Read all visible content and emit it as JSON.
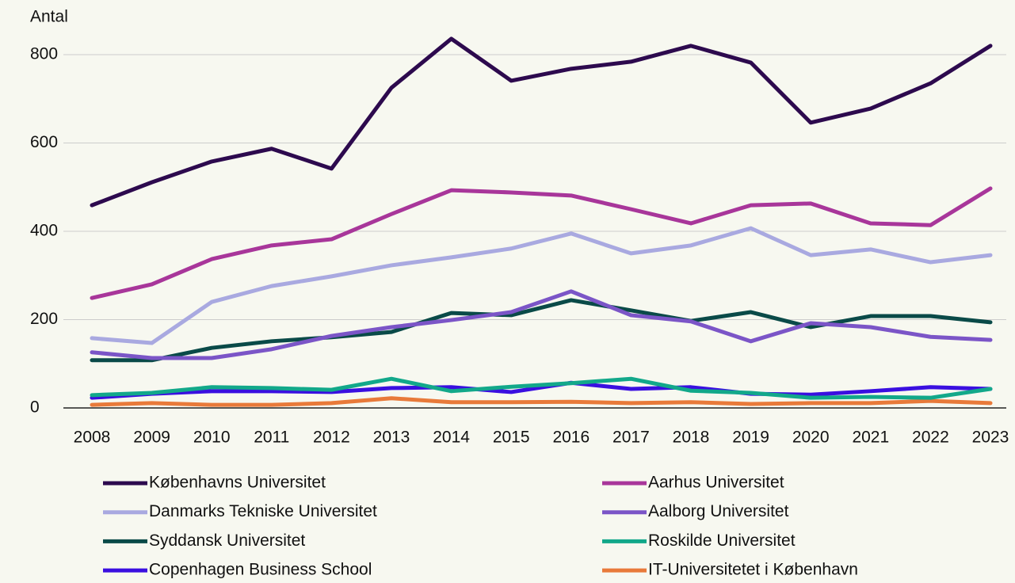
{
  "chart_data": {
    "type": "line",
    "y_label": "Antal",
    "categories": [
      "2008",
      "2009",
      "2010",
      "2011",
      "2012",
      "2013",
      "2014",
      "2015",
      "2016",
      "2017",
      "2018",
      "2019",
      "2020",
      "2021",
      "2022",
      "2023"
    ],
    "ylim": [
      0,
      800
    ],
    "yticks": [
      0,
      200,
      400,
      600,
      800
    ],
    "grid": true,
    "legend": "bottom",
    "series": [
      {
        "name": "Københavns Universitet",
        "color": "#2d0a4e",
        "values": [
          459,
          511,
          558,
          587,
          542,
          725,
          836,
          741,
          768,
          784,
          820,
          782,
          646,
          678,
          735,
          820
        ]
      },
      {
        "name": "Aarhus Universitet",
        "color": "#a8369a",
        "values": [
          249,
          280,
          337,
          368,
          382,
          439,
          493,
          488,
          481,
          450,
          418,
          459,
          463,
          418,
          414,
          497
        ]
      },
      {
        "name": "Danmarks Tekniske Universitet",
        "color": "#a9a9e0",
        "values": [
          158,
          147,
          240,
          276,
          298,
          323,
          341,
          361,
          395,
          350,
          368,
          407,
          346,
          359,
          330,
          346
        ]
      },
      {
        "name": "Aalborg Universitet",
        "color": "#7b55c7",
        "values": [
          126,
          113,
          113,
          133,
          163,
          183,
          199,
          217,
          264,
          210,
          196,
          151,
          192,
          183,
          161,
          154
        ]
      },
      {
        "name": "Syddansk Universitet",
        "color": "#0a4a48",
        "values": [
          108,
          108,
          136,
          151,
          160,
          172,
          215,
          210,
          244,
          221,
          197,
          217,
          183,
          208,
          208,
          194
        ]
      },
      {
        "name": "Roskilde Universitet",
        "color": "#12a88a",
        "values": [
          29,
          34,
          47,
          45,
          41,
          66,
          38,
          48,
          56,
          66,
          39,
          34,
          23,
          25,
          23,
          43
        ]
      },
      {
        "name": "Copenhagen Business School",
        "color": "#3a0fe0",
        "values": [
          23,
          32,
          38,
          38,
          36,
          45,
          47,
          36,
          57,
          43,
          47,
          32,
          30,
          38,
          47,
          43
        ]
      },
      {
        "name": "IT-Universitetet i København",
        "color": "#e87a3a",
        "values": [
          7,
          11,
          7,
          7,
          11,
          22,
          13,
          13,
          14,
          11,
          13,
          9,
          11,
          11,
          16,
          11
        ]
      }
    ]
  }
}
